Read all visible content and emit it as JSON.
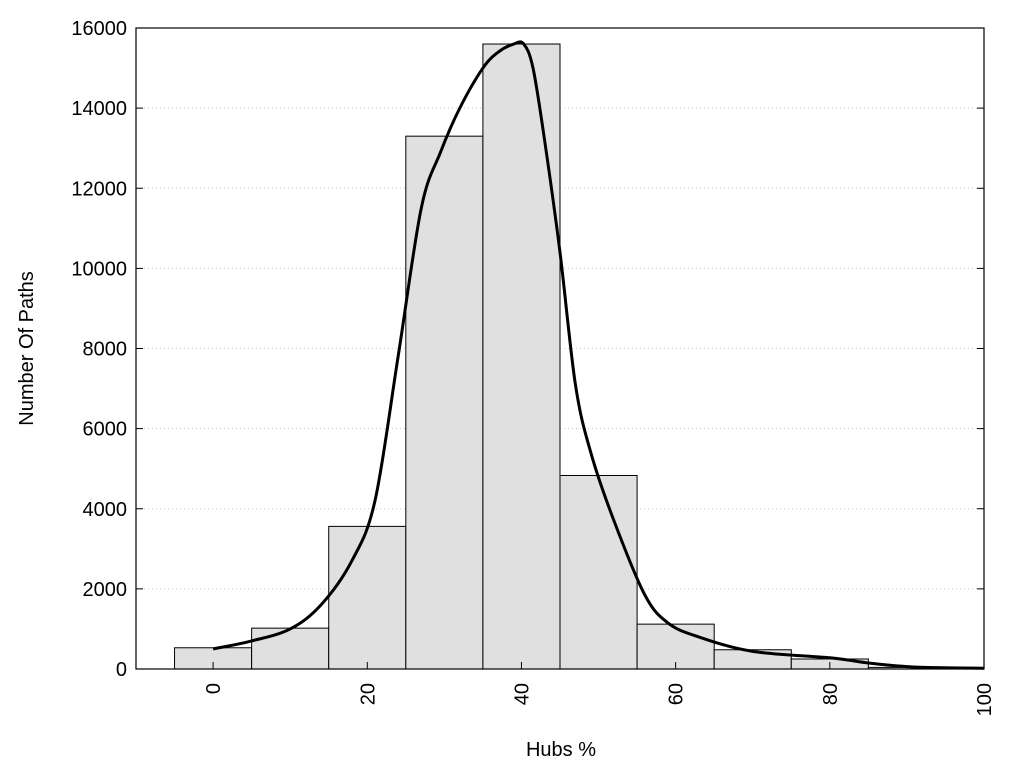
{
  "chart_data": {
    "type": "bar",
    "title": "",
    "xlabel": "Hubs %",
    "ylabel": "Number Of Paths",
    "xlim": [
      -10,
      100
    ],
    "ylim": [
      0,
      16000
    ],
    "x_ticks": [
      0,
      20,
      40,
      60,
      80,
      100
    ],
    "y_ticks": [
      0,
      2000,
      4000,
      6000,
      8000,
      10000,
      12000,
      14000,
      16000
    ],
    "grid": "horizontal dotted",
    "bar_width": 10,
    "categories": [
      0,
      10,
      20,
      30,
      40,
      50,
      60,
      70,
      80,
      90
    ],
    "values": [
      530,
      1020,
      3560,
      13300,
      15600,
      4830,
      1120,
      480,
      250,
      40
    ],
    "bar_color": "#e0e0e0",
    "curve": {
      "type": "line",
      "x": [
        0,
        5,
        10,
        14,
        18,
        21,
        24,
        27,
        29.5,
        32,
        35,
        37,
        39,
        40.3,
        41.5,
        43,
        45,
        47,
        49,
        52,
        56,
        59,
        63,
        70,
        80,
        85,
        90,
        95,
        100
      ],
      "y": [
        500,
        700,
        1000,
        1600,
        2700,
        4200,
        7800,
        11500,
        12900,
        14000,
        15000,
        15400,
        15600,
        15600,
        15000,
        13200,
        10400,
        7100,
        5400,
        3700,
        1850,
        1150,
        800,
        440,
        280,
        150,
        60,
        30,
        20
      ],
      "color": "#000000"
    }
  }
}
